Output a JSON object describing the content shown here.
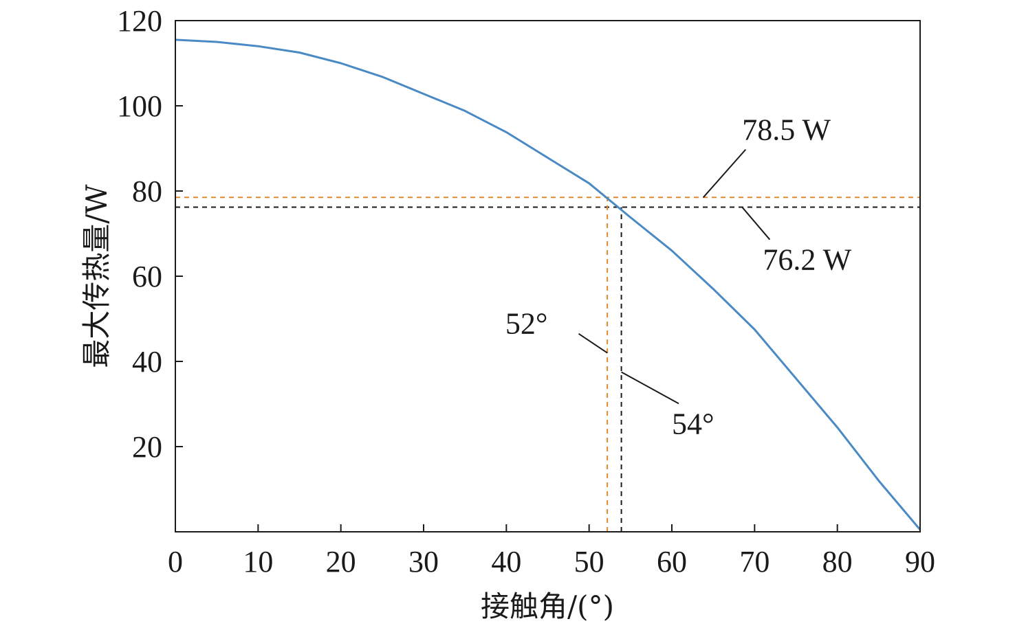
{
  "chart_data": {
    "type": "line",
    "xlabel": "接触角/(°)",
    "ylabel": "最大传热量/W",
    "xlim": [
      0,
      90
    ],
    "ylim": [
      0,
      120
    ],
    "x_ticks": [
      0,
      10,
      20,
      30,
      40,
      50,
      60,
      70,
      80,
      90
    ],
    "y_ticks": [
      20,
      40,
      60,
      80,
      100,
      120
    ],
    "x_tick_labels": [
      "0",
      "10",
      "20",
      "30",
      "40",
      "50",
      "60",
      "70",
      "80",
      "90"
    ],
    "y_tick_labels": [
      "20",
      "40",
      "60",
      "80",
      "100",
      "120"
    ],
    "grid": false,
    "series": [
      {
        "color": "#4a8ac4",
        "x": [
          0,
          5,
          10,
          15,
          20,
          25,
          30,
          35,
          40,
          45,
          50,
          55,
          60,
          65,
          70,
          75,
          80,
          85,
          90
        ],
        "y": [
          115.5,
          115.0,
          114.0,
          112.5,
          110.0,
          106.8,
          102.8,
          98.8,
          93.8,
          87.8,
          81.8,
          73.8,
          66.0,
          57.0,
          47.5,
          36.0,
          24.5,
          12.0,
          0.5
        ]
      }
    ],
    "reference_lines": [
      {
        "orientation": "horizontal",
        "value": 78.5,
        "color": "#e0882e",
        "style": "dashed"
      },
      {
        "orientation": "horizontal",
        "value": 76.2,
        "color": "#1a1a1a",
        "style": "dashed"
      },
      {
        "orientation": "vertical",
        "value": 52.2,
        "ymax": 78.5,
        "color": "#e0882e",
        "style": "dashed"
      },
      {
        "orientation": "vertical",
        "value": 53.9,
        "ymax": 76.2,
        "color": "#1a1a1a",
        "style": "dashed"
      }
    ],
    "annotations": [
      {
        "text": "78.5 W",
        "point": [
          63.8,
          78.5
        ],
        "text_at": [
          68.5,
          92
        ]
      },
      {
        "text": "76.2 W",
        "point": [
          68.5,
          76.2
        ],
        "text_at": [
          71,
          61.5
        ]
      },
      {
        "text": "52°",
        "point": [
          52.2,
          42.0
        ],
        "text_at": [
          45,
          46.5
        ]
      },
      {
        "text": "54°",
        "point": [
          53.9,
          37.5
        ],
        "text_at": [
          60,
          23
        ]
      }
    ]
  }
}
